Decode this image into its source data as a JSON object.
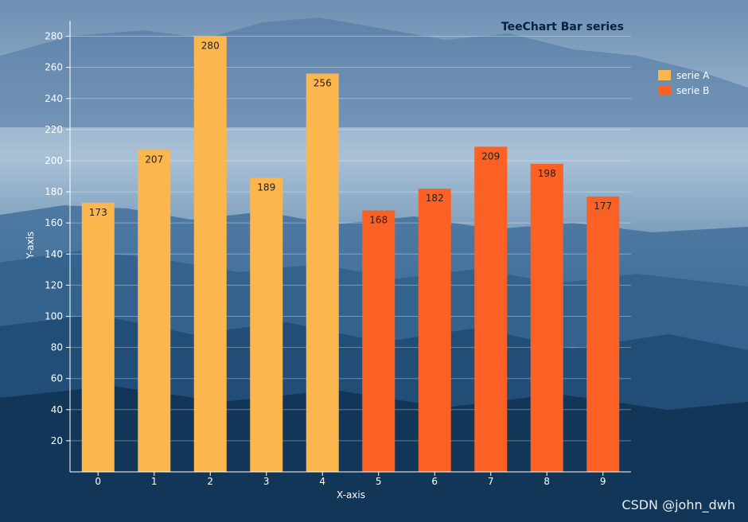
{
  "chart_data": {
    "type": "bar",
    "title": "TeeChart Bar series",
    "xlabel": "X-axis",
    "ylabel": "Y-axis",
    "categories": [
      "0",
      "1",
      "2",
      "3",
      "4",
      "5",
      "6",
      "7",
      "8",
      "9"
    ],
    "ylim": [
      0,
      290
    ],
    "yticks": [
      20,
      40,
      60,
      80,
      100,
      120,
      140,
      160,
      180,
      200,
      220,
      240,
      260,
      280
    ],
    "grid": true,
    "legend_position": "right",
    "series": [
      {
        "name": "serie A",
        "color": "#fcb64e",
        "values": [
          173,
          207,
          280,
          189,
          256,
          null,
          null,
          null,
          null,
          null
        ]
      },
      {
        "name": "serie B",
        "color": "#fb6124",
        "values": [
          null,
          null,
          null,
          null,
          null,
          168,
          182,
          209,
          198,
          177
        ]
      }
    ]
  },
  "watermark": "CSDN @john_dwh"
}
